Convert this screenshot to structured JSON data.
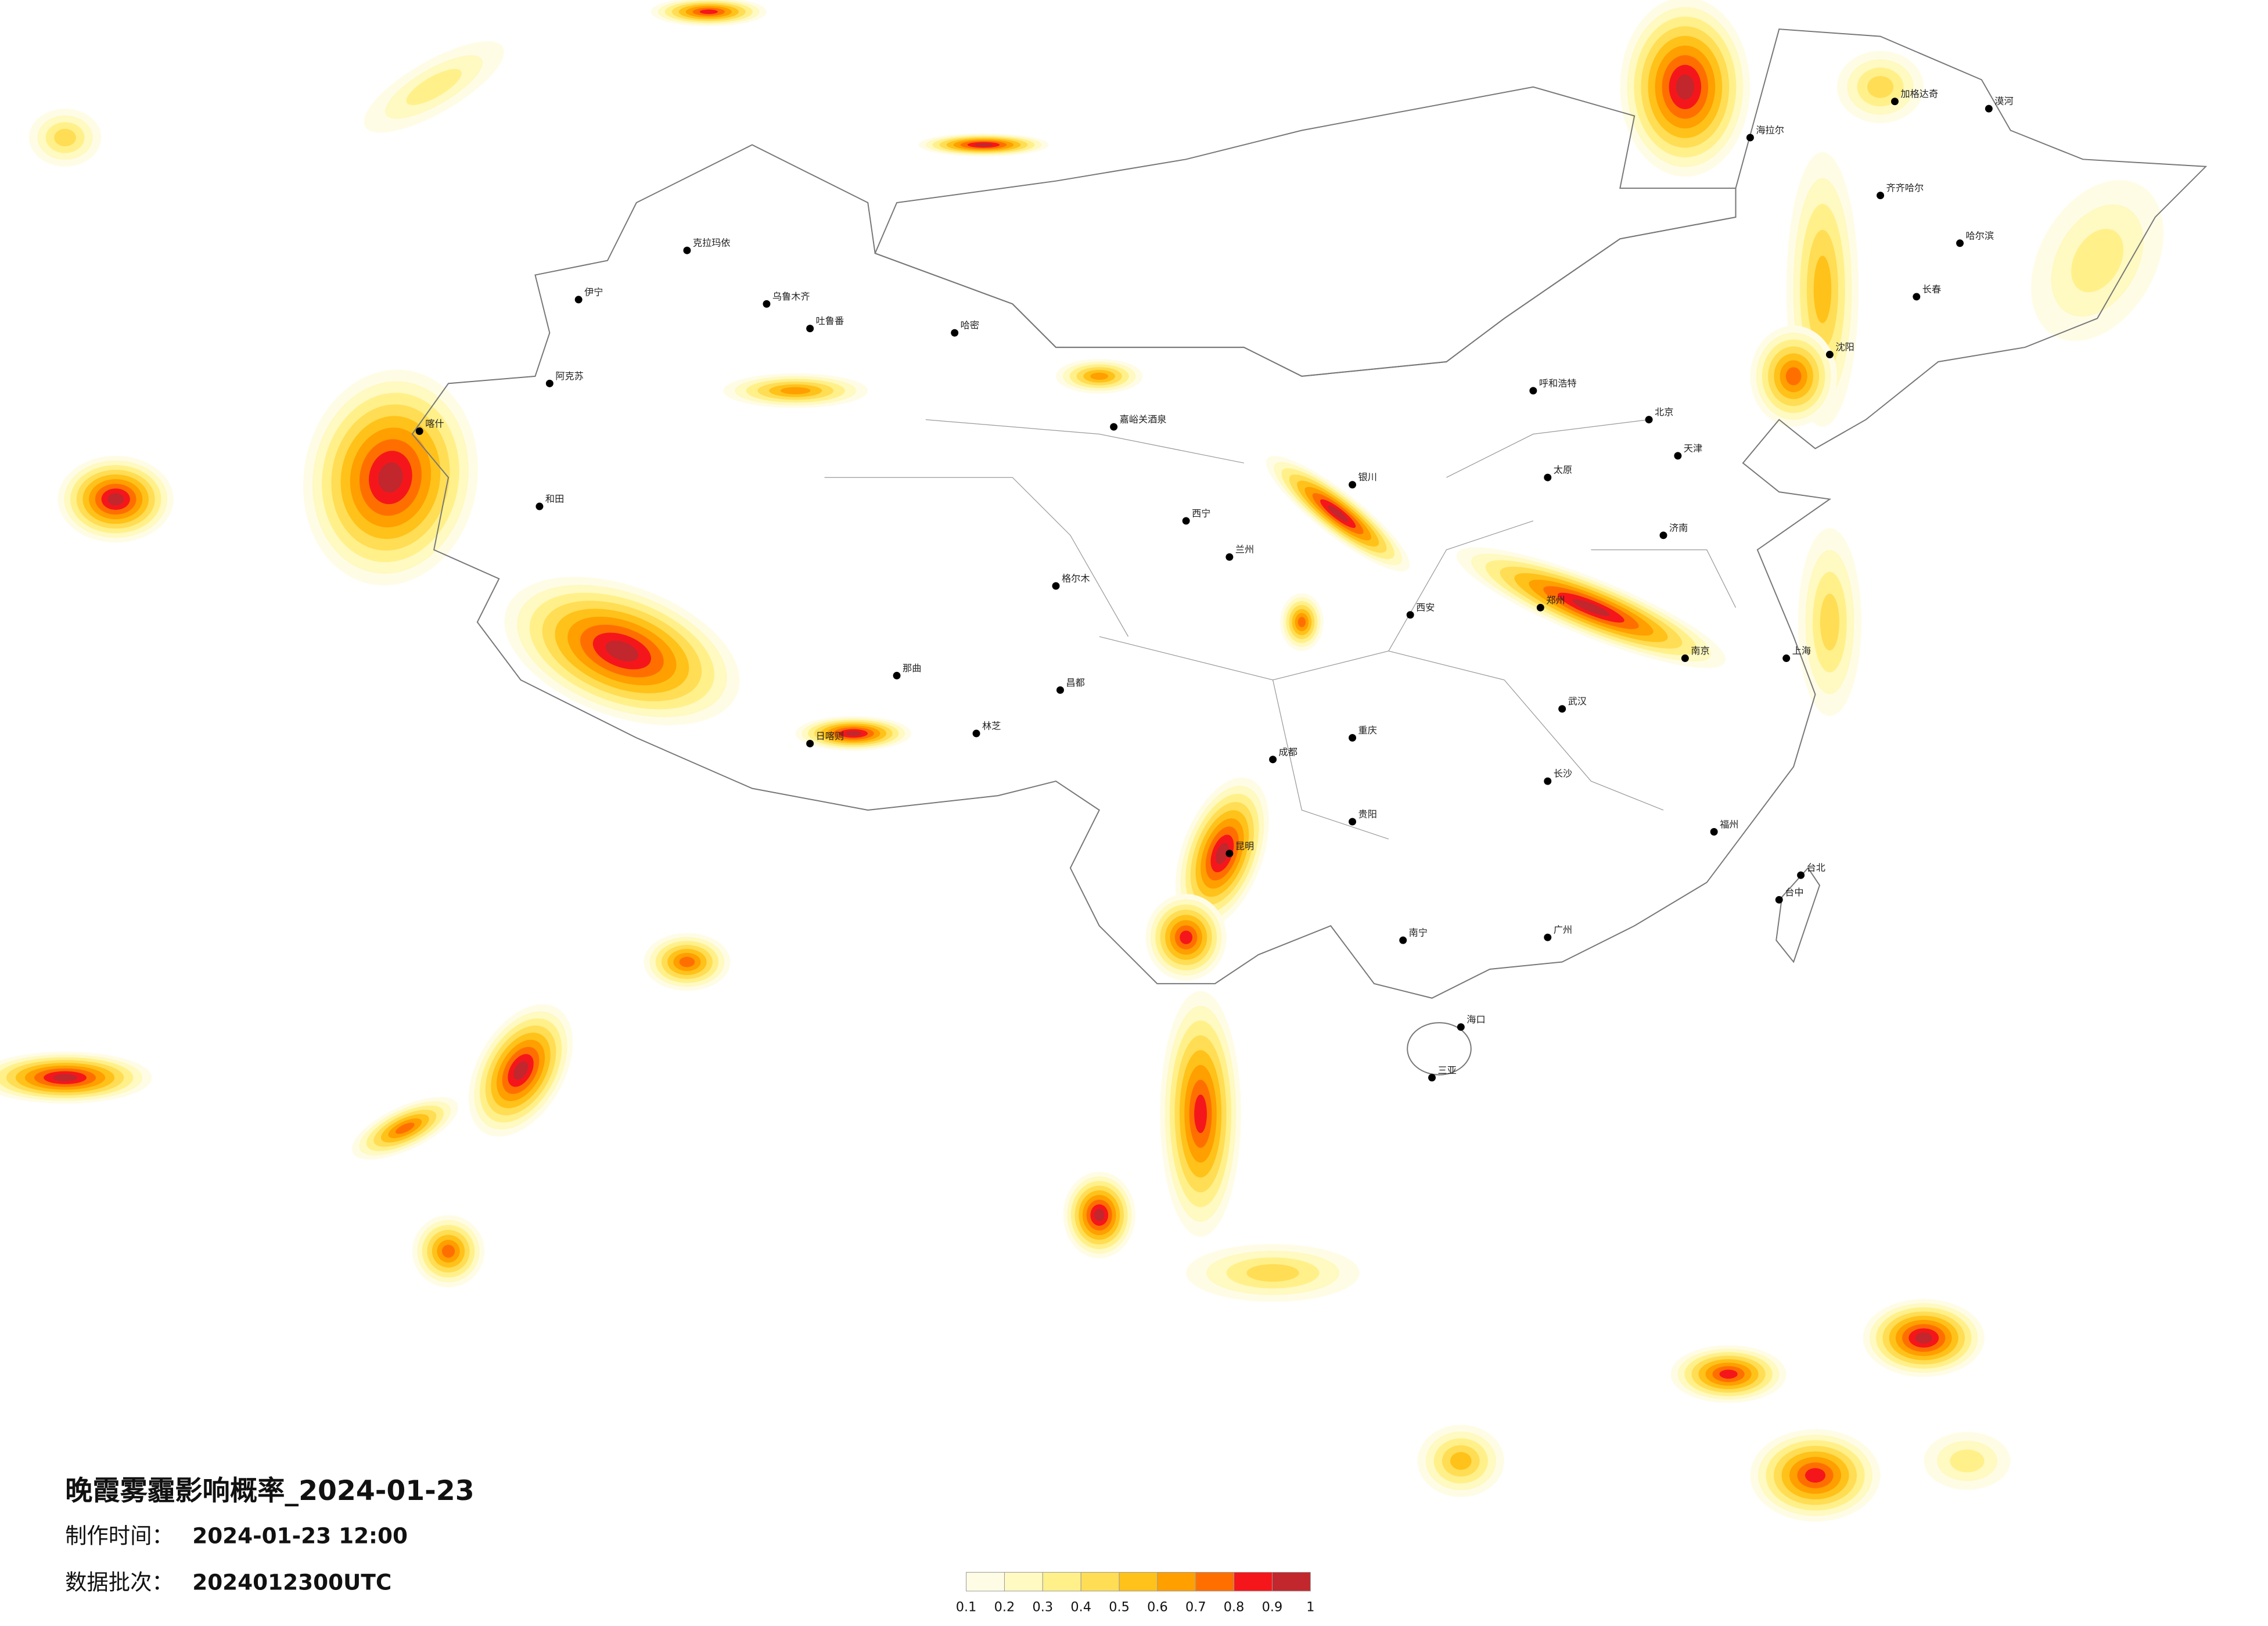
{
  "header": {
    "title": "晚霞雾霾影响概率_2024-01-23",
    "made_label": "制作时间：",
    "made_time": "2024-01-23 12:00",
    "batch_label": "数据批次：",
    "batch": "2024012300UTC"
  },
  "legend": {
    "ticks": [
      0.1,
      0.2,
      0.3,
      0.4,
      0.5,
      0.6,
      0.7,
      0.8,
      0.9,
      1
    ],
    "colors": [
      "#fffce6",
      "#fff9c2",
      "#fff08a",
      "#ffdd55",
      "#ffc21a",
      "#ff9f00",
      "#ff6f00",
      "#f5161b",
      "#c1272d"
    ]
  },
  "cities": [
    "克拉玛依",
    "乌鲁木齐",
    "吐鲁番",
    "哈密",
    "伊宁",
    "阿克苏",
    "和田",
    "喀什",
    "日喀则",
    "林芝",
    "那曲",
    "昌都",
    "西宁",
    "兰州",
    "成都",
    "重庆",
    "昆明",
    "贵阳",
    "南宁",
    "广州",
    "福州",
    "台北",
    "上海",
    "南京",
    "武汉",
    "长沙",
    "郑州",
    "北京",
    "天津",
    "沈阳",
    "长春",
    "哈尔滨",
    "呼和浩特",
    "银川",
    "西安",
    "太原",
    "济南",
    "海口",
    "三亚",
    "台中",
    "漠河",
    "齐齐哈尔",
    "加格达奇",
    "海拉尔",
    "嘉峪关酒泉",
    "格尔木"
  ]
}
